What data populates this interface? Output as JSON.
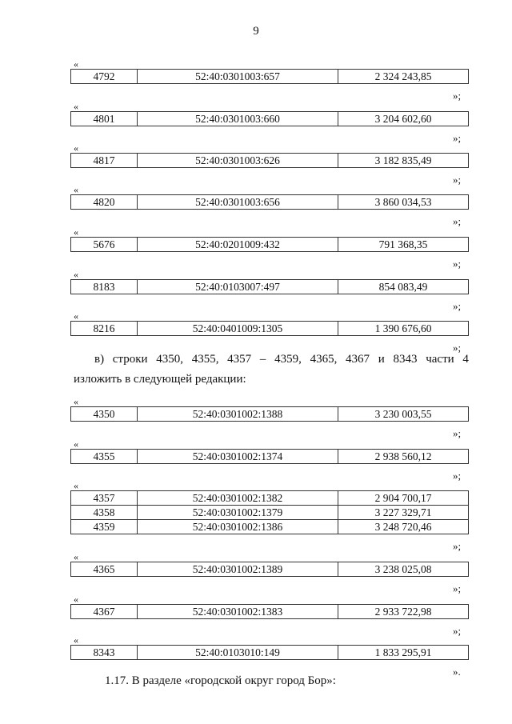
{
  "page_number": "9",
  "blocks_a": [
    {
      "open": "«",
      "rows": [
        [
          "4792",
          "52:40:0301003:657",
          "2 324 243,85"
        ]
      ],
      "close": "»;"
    },
    {
      "open": "«",
      "rows": [
        [
          "4801",
          "52:40:0301003:660",
          "3 204 602,60"
        ]
      ],
      "close": "»;"
    },
    {
      "open": "«",
      "rows": [
        [
          "4817",
          "52:40:0301003:626",
          "3 182 835,49"
        ]
      ],
      "close": "»;"
    },
    {
      "open": "«",
      "rows": [
        [
          "4820",
          "52:40:0301003:656",
          "3 860 034,53"
        ]
      ],
      "close": "»;"
    },
    {
      "open": "«",
      "rows": [
        [
          "5676",
          "52:40:0201009:432",
          "791 368,35"
        ]
      ],
      "close": "»;"
    },
    {
      "open": "«",
      "rows": [
        [
          "8183",
          "52:40:0103007:497",
          "854 083,49"
        ]
      ],
      "close": "»;"
    },
    {
      "open": "«",
      "rows": [
        [
          "8216",
          "52:40:0401009:1305",
          "1 390 676,60"
        ]
      ],
      "close": "»;"
    }
  ],
  "paragraph_v": {
    "line1": [
      "в)",
      "строки",
      "4350,",
      "4355,",
      "4357",
      "–",
      "4359,",
      "4365,",
      "4367",
      "и",
      "8343",
      "части",
      "4"
    ],
    "line2": "изложить в следующей редакции:"
  },
  "blocks_b": [
    {
      "open": "«",
      "rows": [
        [
          "4350",
          "52:40:0301002:1388",
          "3 230 003,55"
        ]
      ],
      "close": "»;"
    },
    {
      "open": "«",
      "rows": [
        [
          "4355",
          "52:40:0301002:1374",
          "2 938 560,12"
        ]
      ],
      "close": "»;"
    },
    {
      "open": "«",
      "rows": [
        [
          "4357",
          "52:40:0301002:1382",
          "2 904 700,17"
        ],
        [
          "4358",
          "52:40:0301002:1379",
          "3 227 329,71"
        ],
        [
          "4359",
          "52:40:0301002:1386",
          "3 248 720,46"
        ]
      ],
      "close": "»;"
    },
    {
      "open": "«",
      "rows": [
        [
          "4365",
          "52:40:0301002:1389",
          "3 238 025,08"
        ]
      ],
      "close": "»;"
    },
    {
      "open": "«",
      "rows": [
        [
          "4367",
          "52:40:0301002:1383",
          "2 933 722,98"
        ]
      ],
      "close": "»;"
    },
    {
      "open": "«",
      "rows": [
        [
          "8343",
          "52:40:0103010:149",
          "1 833 295,91"
        ]
      ],
      "close": "»."
    }
  ],
  "section_117": "1.17. В разделе «городской округ город Бор»:"
}
